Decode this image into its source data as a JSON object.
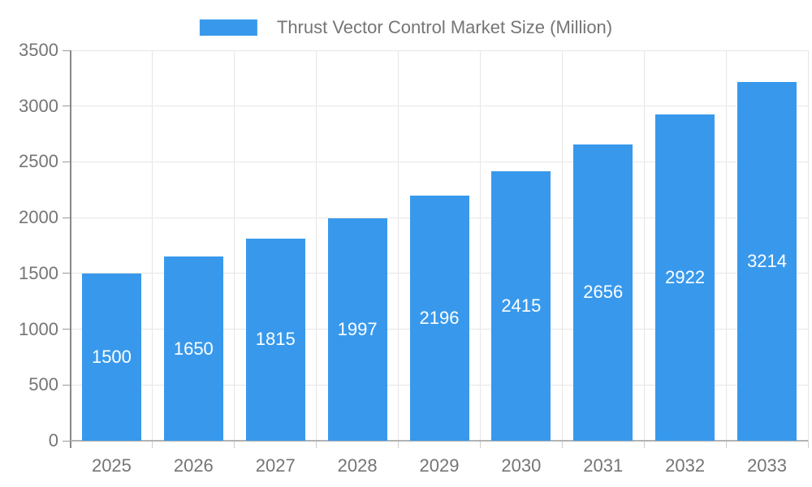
{
  "chart_data": {
    "type": "bar",
    "title": "Thrust Vector Control Market Size (Million)",
    "legend": [
      "Thrust Vector Control Market Size (Million)"
    ],
    "legend_position": "top",
    "categories": [
      "2025",
      "2026",
      "2027",
      "2028",
      "2029",
      "2030",
      "2031",
      "2032",
      "2033"
    ],
    "series": [
      {
        "name": "Thrust Vector Control Market Size (Million)",
        "values": [
          1500,
          1650,
          1815,
          1997,
          2196,
          2415,
          2656,
          2922,
          3214
        ]
      }
    ],
    "value_labels_style": "inside-center-white",
    "xlabel": "",
    "ylabel": "",
    "ylim": [
      0,
      3500
    ],
    "yticks": [
      0,
      500,
      1000,
      1500,
      2000,
      2500,
      3000,
      3500
    ],
    "grid": true,
    "colors": {
      "bar": "#3899EC",
      "axis_text": "#757575",
      "grid": "#E6E6E6",
      "axis_line_y": "#888888",
      "axis_line_x": "#B3B3B3"
    }
  }
}
